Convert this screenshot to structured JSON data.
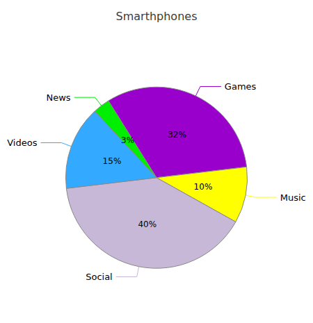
{
  "chart_data": {
    "type": "pie",
    "title": "Smarthphones",
    "categories": [
      "Games",
      "Music",
      "Social",
      "Videos",
      "News"
    ],
    "values": [
      32,
      10,
      40,
      15,
      3
    ],
    "value_labels": [
      "32%",
      "10%",
      "40%",
      "15%",
      "3%"
    ],
    "colors": [
      "#9900cc",
      "#ffff00",
      "#c8b8d8",
      "#33aaff",
      "#00ee00"
    ],
    "data_labels": true
  }
}
